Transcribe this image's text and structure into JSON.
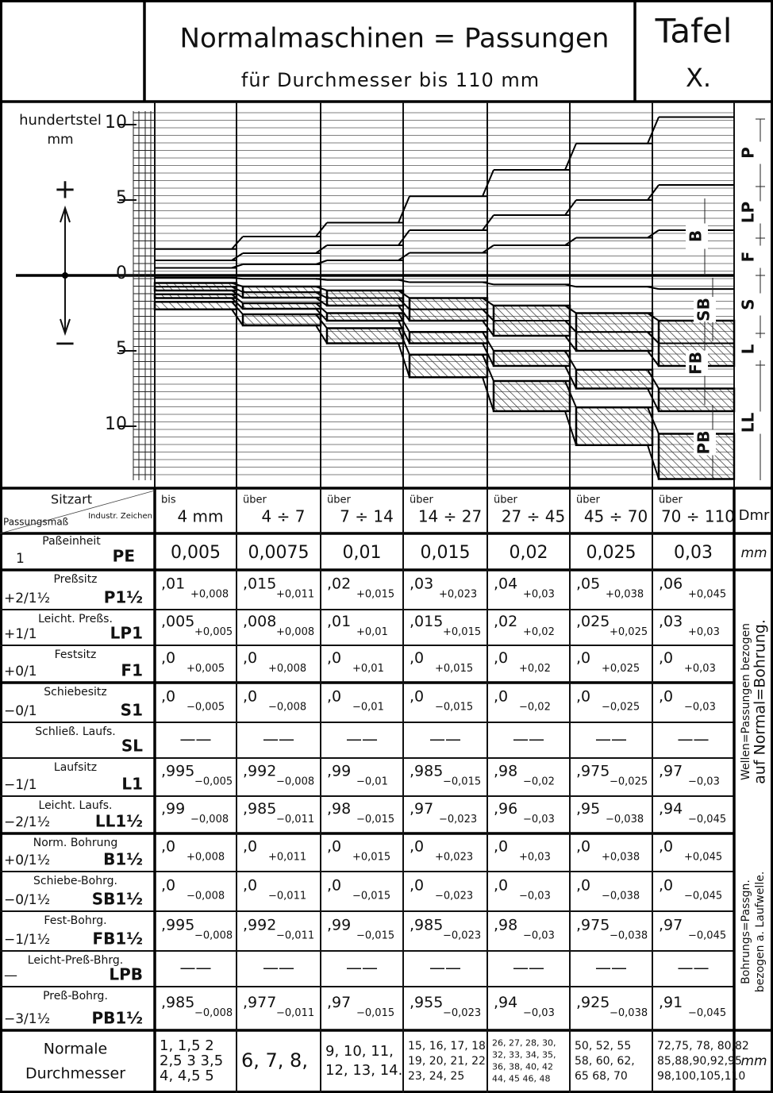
{
  "header": {
    "title": "Normalmaschinen = Passungen",
    "subtitle": "für Durchmesser bis 110 mm",
    "tafel": "Tafel",
    "tafel_number": "X."
  },
  "chart": {
    "axis_label": [
      "hundertstel",
      "mm"
    ],
    "plus": "+",
    "minus": "−",
    "ticks": [
      {
        "value": 10,
        "label": "10"
      },
      {
        "value": 5,
        "label": "5"
      },
      {
        "value": 0,
        "label": "0"
      },
      {
        "value": -5,
        "label": "5"
      },
      {
        "value": -10,
        "label": "10"
      }
    ],
    "side_labels": [
      "P",
      "LP",
      "F",
      "S",
      "L",
      "LL"
    ],
    "band_labels": [
      "B",
      "SB",
      "FB",
      "PB"
    ]
  },
  "table": {
    "header": {
      "sitzart": "Sitzart",
      "passungsmass": "Passungsmaß",
      "industrie": "Industr. Zeichen",
      "columns": [
        {
          "prefix": "bis",
          "range": "4 mm"
        },
        {
          "prefix": "über",
          "range": "4 ÷ 7"
        },
        {
          "prefix": "über",
          "range": "7 ÷ 14"
        },
        {
          "prefix": "über",
          "range": "14 ÷ 27"
        },
        {
          "prefix": "über",
          "range": "27 ÷ 45"
        },
        {
          "prefix": "über",
          "range": "45 ÷ 70"
        },
        {
          "prefix": "über",
          "range": "70 ÷ 110"
        }
      ],
      "unit": "Dmr"
    },
    "unit_row": {
      "name": "Paßeinheit",
      "fit": "1",
      "code": "PE",
      "values": [
        "0,005",
        "0,0075",
        "0,01",
        "0,015",
        "0,02",
        "0,025",
        "0,03"
      ],
      "unit": "mm"
    },
    "rows": [
      {
        "name": "Preßsitz",
        "fit": "+2/1½",
        "code": "P1½",
        "cells": [
          {
            "base": ",01",
            "dev": "+0,008"
          },
          {
            "base": ",015",
            "dev": "+0,011"
          },
          {
            "base": ",02",
            "dev": "+0,015"
          },
          {
            "base": ",03",
            "dev": "+0,023"
          },
          {
            "base": ",04",
            "dev": "+0,03"
          },
          {
            "base": ",05",
            "dev": "+0,038"
          },
          {
            "base": ",06",
            "dev": "+0,045"
          }
        ]
      },
      {
        "name": "Leicht. Preßs.",
        "fit": "+1/1",
        "code": "LP1",
        "cells": [
          {
            "base": ",005",
            "dev": "+0,005"
          },
          {
            "base": ",008",
            "dev": "+0,008"
          },
          {
            "base": ",01",
            "dev": "+0,01"
          },
          {
            "base": ",015",
            "dev": "+0,015"
          },
          {
            "base": ",02",
            "dev": "+0,02"
          },
          {
            "base": ",025",
            "dev": "+0,025"
          },
          {
            "base": ",03",
            "dev": "+0,03"
          }
        ]
      },
      {
        "name": "Festsitz",
        "fit": "+0/1",
        "code": "F1",
        "cells": [
          {
            "base": ",0",
            "dev": "+0,005"
          },
          {
            "base": ",0",
            "dev": "+0,008"
          },
          {
            "base": ",0",
            "dev": "+0,01"
          },
          {
            "base": ",0",
            "dev": "+0,015"
          },
          {
            "base": ",0",
            "dev": "+0,02"
          },
          {
            "base": ",0",
            "dev": "+0,025"
          },
          {
            "base": ",0",
            "dev": "+0,03"
          }
        ]
      },
      {
        "name": "Schiebesitz",
        "fit": "−0/1",
        "code": "S1",
        "cells": [
          {
            "base": ",0",
            "dev": "−0,005"
          },
          {
            "base": ",0",
            "dev": "−0,008"
          },
          {
            "base": ",0",
            "dev": "−0,01"
          },
          {
            "base": ",0",
            "dev": "−0,015"
          },
          {
            "base": ",0",
            "dev": "−0,02"
          },
          {
            "base": ",0",
            "dev": "−0,025"
          },
          {
            "base": ",0",
            "dev": "−0,03"
          }
        ]
      },
      {
        "name": "Schließ. Laufs.",
        "code": "SL",
        "cells": [
          {
            "base": "——"
          },
          {
            "base": "——"
          },
          {
            "base": "——"
          },
          {
            "base": "——"
          },
          {
            "base": "——"
          },
          {
            "base": "——"
          },
          {
            "base": "——"
          }
        ]
      },
      {
        "name": "Laufsitz",
        "fit": "−1/1",
        "code": "L1",
        "cells": [
          {
            "base": ",995",
            "dev": "−0,005"
          },
          {
            "base": ",992",
            "dev": "−0,008"
          },
          {
            "base": ",99",
            "dev": "−0,01"
          },
          {
            "base": ",985",
            "dev": "−0,015"
          },
          {
            "base": ",98",
            "dev": "−0,02"
          },
          {
            "base": ",975",
            "dev": "−0,025"
          },
          {
            "base": ",97",
            "dev": "−0,03"
          }
        ]
      },
      {
        "name": "Leicht. Laufs.",
        "fit": "−2/1½",
        "code": "LL1½",
        "cells": [
          {
            "base": ",99",
            "dev": "−0,008"
          },
          {
            "base": ",985",
            "dev": "−0,011"
          },
          {
            "base": ",98",
            "dev": "−0,015"
          },
          {
            "base": ",97",
            "dev": "−0,023"
          },
          {
            "base": ",96",
            "dev": "−0,03"
          },
          {
            "base": ",95",
            "dev": "−0,038"
          },
          {
            "base": ",94",
            "dev": "−0,045"
          }
        ]
      },
      {
        "name": "Norm. Bohrung",
        "fit": "+0/1½",
        "code": "B1½",
        "cells": [
          {
            "base": ",0",
            "dev": "+0,008"
          },
          {
            "base": ",0",
            "dev": "+0,011"
          },
          {
            "base": ",0",
            "dev": "+0,015"
          },
          {
            "base": ",0",
            "dev": "+0,023"
          },
          {
            "base": ",0",
            "dev": "+0,03"
          },
          {
            "base": ",0",
            "dev": "+0,038"
          },
          {
            "base": ",0",
            "dev": "+0,045"
          }
        ]
      },
      {
        "name": "Schiebe-Bohrg.",
        "fit": "−0/1½",
        "code": "SB1½",
        "cells": [
          {
            "base": ",0",
            "dev": "−0,008"
          },
          {
            "base": ",0",
            "dev": "−0,011"
          },
          {
            "base": ",0",
            "dev": "−0,015"
          },
          {
            "base": ",0",
            "dev": "−0,023"
          },
          {
            "base": ",0",
            "dev": "−0,03"
          },
          {
            "base": ",0",
            "dev": "−0,038"
          },
          {
            "base": ",0",
            "dev": "−0,045"
          }
        ]
      },
      {
        "name": "Fest-Bohrg.",
        "fit": "−1/1½",
        "code": "FB1½",
        "cells": [
          {
            "base": ",995",
            "dev": "−0,008"
          },
          {
            "base": ",992",
            "dev": "−0,011"
          },
          {
            "base": ",99",
            "dev": "−0,015"
          },
          {
            "base": ",985",
            "dev": "−0,023"
          },
          {
            "base": ",98",
            "dev": "−0,03"
          },
          {
            "base": ",975",
            "dev": "−0,038"
          },
          {
            "base": ",97",
            "dev": "−0,045"
          }
        ]
      },
      {
        "name": "Leicht-Preß-Bhrg.",
        "fit": "—",
        "code": "LPB",
        "cells": [
          {
            "base": "——"
          },
          {
            "base": "——"
          },
          {
            "base": "——"
          },
          {
            "base": "——"
          },
          {
            "base": "——"
          },
          {
            "base": "——"
          },
          {
            "base": "——"
          }
        ]
      },
      {
        "name": "Preß-Bohrg.",
        "fit": "−3/1½",
        "code": "PB1½",
        "cells": [
          {
            "base": ",985",
            "dev": "−0,008"
          },
          {
            "base": ",977",
            "dev": "−0,011"
          },
          {
            "base": ",97",
            "dev": "−0,015"
          },
          {
            "base": ",955",
            "dev": "−0,023"
          },
          {
            "base": ",94",
            "dev": "−0,03"
          },
          {
            "base": ",925",
            "dev": "−0,038"
          },
          {
            "base": ",91",
            "dev": "−0,045"
          }
        ]
      }
    ],
    "side_notes": [
      [
        "Wellen=Passungen bezogen",
        "auf Normal=Bohrung."
      ],
      [
        "Bohrungs=Passgn.",
        "bezogen a. Laufwelle."
      ]
    ],
    "normal": {
      "name": [
        "Normale",
        "Durchmesser"
      ],
      "cells": [
        [
          "1, 1,5 2",
          "2,5 3 3,5",
          "4, 4,5 5"
        ],
        [
          "6, 7, 8,"
        ],
        [
          "9, 10, 11,",
          "12, 13, 14."
        ],
        [
          "15, 16, 17, 18",
          "19, 20, 21, 22",
          "23, 24, 25"
        ],
        [
          "26, 27, 28, 30,",
          "32, 33, 34, 35,",
          "36, 38, 40, 42",
          "44, 45 46, 48"
        ],
        [
          "50, 52, 55",
          "58, 60, 62,",
          "65 68, 70"
        ],
        [
          "72,75, 78, 80,82",
          "85,88,90,92,95",
          "98,100,105,110"
        ]
      ],
      "unit": "mm"
    }
  }
}
